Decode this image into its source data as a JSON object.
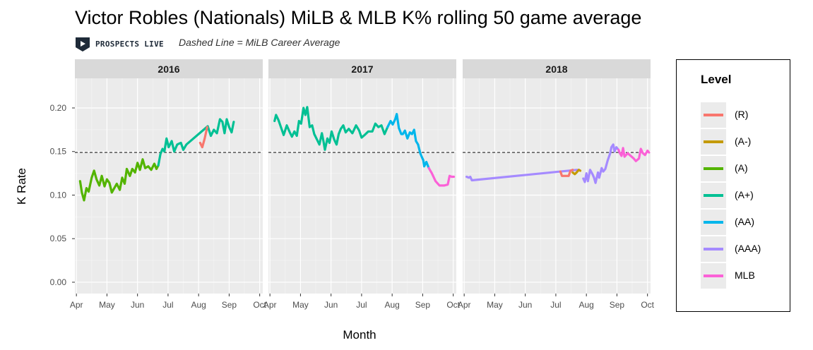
{
  "chart_data": {
    "type": "line",
    "title": "Victor Robles (Nationals) MiLB & MLB K% rolling 50 game average",
    "subtitle": "Dashed Line = MiLB Career Average",
    "brand": "PROSPECTS LIVE",
    "xlabel": "Month",
    "ylabel": "K Rate",
    "ylim": [
      -0.013,
      0.234
    ],
    "yticks": [
      "0.00",
      "0.05",
      "0.10",
      "0.15",
      "0.20"
    ],
    "ytick_values": [
      0,
      0.05,
      0.1,
      0.15,
      0.2
    ],
    "x_tick_labels": [
      "Apr",
      "May",
      "Jun",
      "Jul",
      "Aug",
      "Sep",
      "Oct"
    ],
    "x_tick_months": [
      4,
      5,
      6,
      7,
      8,
      9,
      10
    ],
    "xlim_months": [
      3.95,
      10.1
    ],
    "reference_line": 0.149,
    "grid": true,
    "legend_title": "Level",
    "legend_position": "right",
    "levels": [
      {
        "name": "(R)",
        "color": "#F8766D"
      },
      {
        "name": "(A-)",
        "color": "#C49A00"
      },
      {
        "name": "(A)",
        "color": "#53B400"
      },
      {
        "name": "(A+)",
        "color": "#00C094"
      },
      {
        "name": "(AA)",
        "color": "#00B6EB"
      },
      {
        "name": "(AAA)",
        "color": "#A58AFF"
      },
      {
        "name": "MLB",
        "color": "#FB61D7"
      }
    ],
    "panels": [
      {
        "label": "2016",
        "series": [
          {
            "level": "(A)",
            "points": [
              [
                4.12,
                0.116
              ],
              [
                4.18,
                0.103
              ],
              [
                4.25,
                0.094
              ],
              [
                4.33,
                0.108
              ],
              [
                4.4,
                0.104
              ],
              [
                4.5,
                0.12
              ],
              [
                4.58,
                0.128
              ],
              [
                4.66,
                0.118
              ],
              [
                4.75,
                0.111
              ],
              [
                4.83,
                0.122
              ],
              [
                4.92,
                0.11
              ],
              [
                5.0,
                0.118
              ],
              [
                5.08,
                0.114
              ],
              [
                5.16,
                0.103
              ],
              [
                5.24,
                0.108
              ],
              [
                5.32,
                0.113
              ],
              [
                5.42,
                0.106
              ],
              [
                5.5,
                0.12
              ],
              [
                5.58,
                0.113
              ],
              [
                5.65,
                0.13
              ],
              [
                5.75,
                0.122
              ],
              [
                5.83,
                0.13
              ],
              [
                5.92,
                0.126
              ],
              [
                6.0,
                0.137
              ],
              [
                6.08,
                0.129
              ],
              [
                6.17,
                0.141
              ],
              [
                6.25,
                0.131
              ],
              [
                6.35,
                0.133
              ],
              [
                6.45,
                0.129
              ],
              [
                6.55,
                0.136
              ],
              [
                6.62,
                0.13
              ],
              [
                6.68,
                0.134
              ]
            ]
          },
          {
            "level": "(A+)",
            "points": [
              [
                6.68,
                0.134
              ],
              [
                6.75,
                0.147
              ],
              [
                6.82,
                0.153
              ],
              [
                6.88,
                0.15
              ],
              [
                6.95,
                0.165
              ],
              [
                7.02,
                0.155
              ],
              [
                7.12,
                0.162
              ],
              [
                7.2,
                0.15
              ],
              [
                7.3,
                0.158
              ],
              [
                7.42,
                0.16
              ],
              [
                7.5,
                0.152
              ],
              [
                7.6,
                0.158
              ],
              [
                8.3,
                0.179
              ],
              [
                8.4,
                0.168
              ],
              [
                8.5,
                0.175
              ],
              [
                8.6,
                0.171
              ],
              [
                8.7,
                0.187
              ],
              [
                8.78,
                0.184
              ],
              [
                8.85,
                0.171
              ],
              [
                8.92,
                0.187
              ],
              [
                9.0,
                0.178
              ],
              [
                9.08,
                0.172
              ],
              [
                9.15,
                0.184
              ]
            ]
          },
          {
            "level": "(R)",
            "points": [
              [
                8.05,
                0.16
              ],
              [
                8.12,
                0.155
              ],
              [
                8.2,
                0.165
              ],
              [
                8.28,
                0.178
              ]
            ]
          }
        ]
      },
      {
        "label": "2017",
        "series": [
          {
            "level": "(A+)",
            "points": [
              [
                4.15,
                0.185
              ],
              [
                4.2,
                0.192
              ],
              [
                4.28,
                0.186
              ],
              [
                4.36,
                0.178
              ],
              [
                4.45,
                0.169
              ],
              [
                4.55,
                0.18
              ],
              [
                4.65,
                0.172
              ],
              [
                4.72,
                0.167
              ],
              [
                4.8,
                0.173
              ],
              [
                4.88,
                0.168
              ],
              [
                4.95,
                0.185
              ],
              [
                5.02,
                0.182
              ],
              [
                5.1,
                0.2
              ],
              [
                5.16,
                0.192
              ],
              [
                5.22,
                0.201
              ],
              [
                5.3,
                0.178
              ],
              [
                5.38,
                0.18
              ],
              [
                5.45,
                0.17
              ],
              [
                5.55,
                0.163
              ],
              [
                5.62,
                0.158
              ],
              [
                5.7,
                0.171
              ],
              [
                5.75,
                0.162
              ],
              [
                5.8,
                0.152
              ],
              [
                5.88,
                0.165
              ],
              [
                5.95,
                0.16
              ],
              [
                6.02,
                0.173
              ],
              [
                6.1,
                0.164
              ],
              [
                6.18,
                0.158
              ],
              [
                6.25,
                0.17
              ],
              [
                6.32,
                0.176
              ],
              [
                6.4,
                0.18
              ],
              [
                6.48,
                0.172
              ],
              [
                6.58,
                0.176
              ],
              [
                6.7,
                0.171
              ],
              [
                6.82,
                0.18
              ],
              [
                6.92,
                0.174
              ],
              [
                7.0,
                0.166
              ],
              [
                7.1,
                0.169
              ],
              [
                7.22,
                0.173
              ],
              [
                7.35,
                0.173
              ],
              [
                7.45,
                0.182
              ],
              [
                7.55,
                0.178
              ],
              [
                7.65,
                0.18
              ],
              [
                7.75,
                0.17
              ],
              [
                7.85,
                0.178
              ]
            ]
          },
          {
            "level": "(AA)",
            "points": [
              [
                7.85,
                0.178
              ],
              [
                7.95,
                0.185
              ],
              [
                8.02,
                0.181
              ],
              [
                8.1,
                0.187
              ],
              [
                8.15,
                0.193
              ],
              [
                8.22,
                0.177
              ],
              [
                8.3,
                0.17
              ],
              [
                8.35,
                0.17
              ],
              [
                8.42,
                0.174
              ],
              [
                8.5,
                0.165
              ],
              [
                8.58,
                0.172
              ],
              [
                8.65,
                0.17
              ],
              [
                8.72,
                0.175
              ],
              [
                8.78,
                0.162
              ],
              [
                8.85,
                0.158
              ],
              [
                8.92,
                0.148
              ],
              [
                8.98,
                0.143
              ],
              [
                9.02,
                0.14
              ],
              [
                9.05,
                0.133
              ],
              [
                9.12,
                0.138
              ],
              [
                9.2,
                0.131
              ]
            ]
          },
          {
            "level": "MLB",
            "points": [
              [
                9.2,
                0.131
              ],
              [
                9.3,
                0.125
              ],
              [
                9.42,
                0.116
              ],
              [
                9.55,
                0.111
              ],
              [
                9.7,
                0.111
              ],
              [
                9.82,
                0.112
              ],
              [
                9.88,
                0.122
              ],
              [
                9.95,
                0.121
              ],
              [
                10.02,
                0.121
              ]
            ]
          }
        ]
      },
      {
        "label": "2018",
        "series": [
          {
            "level": "(AAA)",
            "points": [
              [
                4.08,
                0.121
              ],
              [
                4.15,
                0.12
              ],
              [
                4.2,
                0.121
              ],
              [
                4.25,
                0.117
              ],
              [
                7.7,
                0.129
              ]
            ]
          },
          {
            "level": "(R)",
            "points": [
              [
                7.15,
                0.127
              ],
              [
                7.2,
                0.122
              ],
              [
                7.32,
                0.122
              ],
              [
                7.42,
                0.122
              ],
              [
                7.48,
                0.128
              ],
              [
                7.55,
                0.129
              ]
            ]
          },
          {
            "level": "(A-)",
            "points": [
              [
                7.55,
                0.126
              ],
              [
                7.62,
                0.124
              ],
              [
                7.68,
                0.126
              ],
              [
                7.75,
                0.129
              ],
              [
                7.8,
                0.128
              ]
            ]
          },
          {
            "level": "(AAA)",
            "points": [
              [
                7.9,
                0.119
              ],
              [
                7.95,
                0.115
              ],
              [
                8.0,
                0.125
              ],
              [
                8.05,
                0.116
              ],
              [
                8.12,
                0.129
              ],
              [
                8.2,
                0.124
              ],
              [
                8.25,
                0.12
              ],
              [
                8.3,
                0.114
              ],
              [
                8.38,
                0.126
              ],
              [
                8.42,
                0.12
              ],
              [
                8.5,
                0.131
              ],
              [
                8.55,
                0.127
              ],
              [
                8.62,
                0.13
              ],
              [
                8.7,
                0.14
              ],
              [
                8.78,
                0.148
              ],
              [
                8.82,
                0.155
              ],
              [
                8.88,
                0.158
              ],
              [
                8.92,
                0.15
              ],
              [
                8.98,
                0.155
              ],
              [
                9.05,
                0.152
              ]
            ]
          },
          {
            "level": "MLB",
            "points": [
              [
                9.05,
                0.152
              ],
              [
                9.1,
                0.148
              ],
              [
                9.15,
                0.145
              ],
              [
                9.2,
                0.154
              ],
              [
                9.25,
                0.144
              ],
              [
                9.35,
                0.148
              ],
              [
                9.45,
                0.145
              ],
              [
                9.55,
                0.142
              ],
              [
                9.62,
                0.139
              ],
              [
                9.72,
                0.142
              ],
              [
                9.78,
                0.153
              ],
              [
                9.85,
                0.148
              ],
              [
                9.92,
                0.146
              ],
              [
                10.0,
                0.151
              ],
              [
                10.05,
                0.149
              ]
            ]
          }
        ]
      }
    ]
  }
}
